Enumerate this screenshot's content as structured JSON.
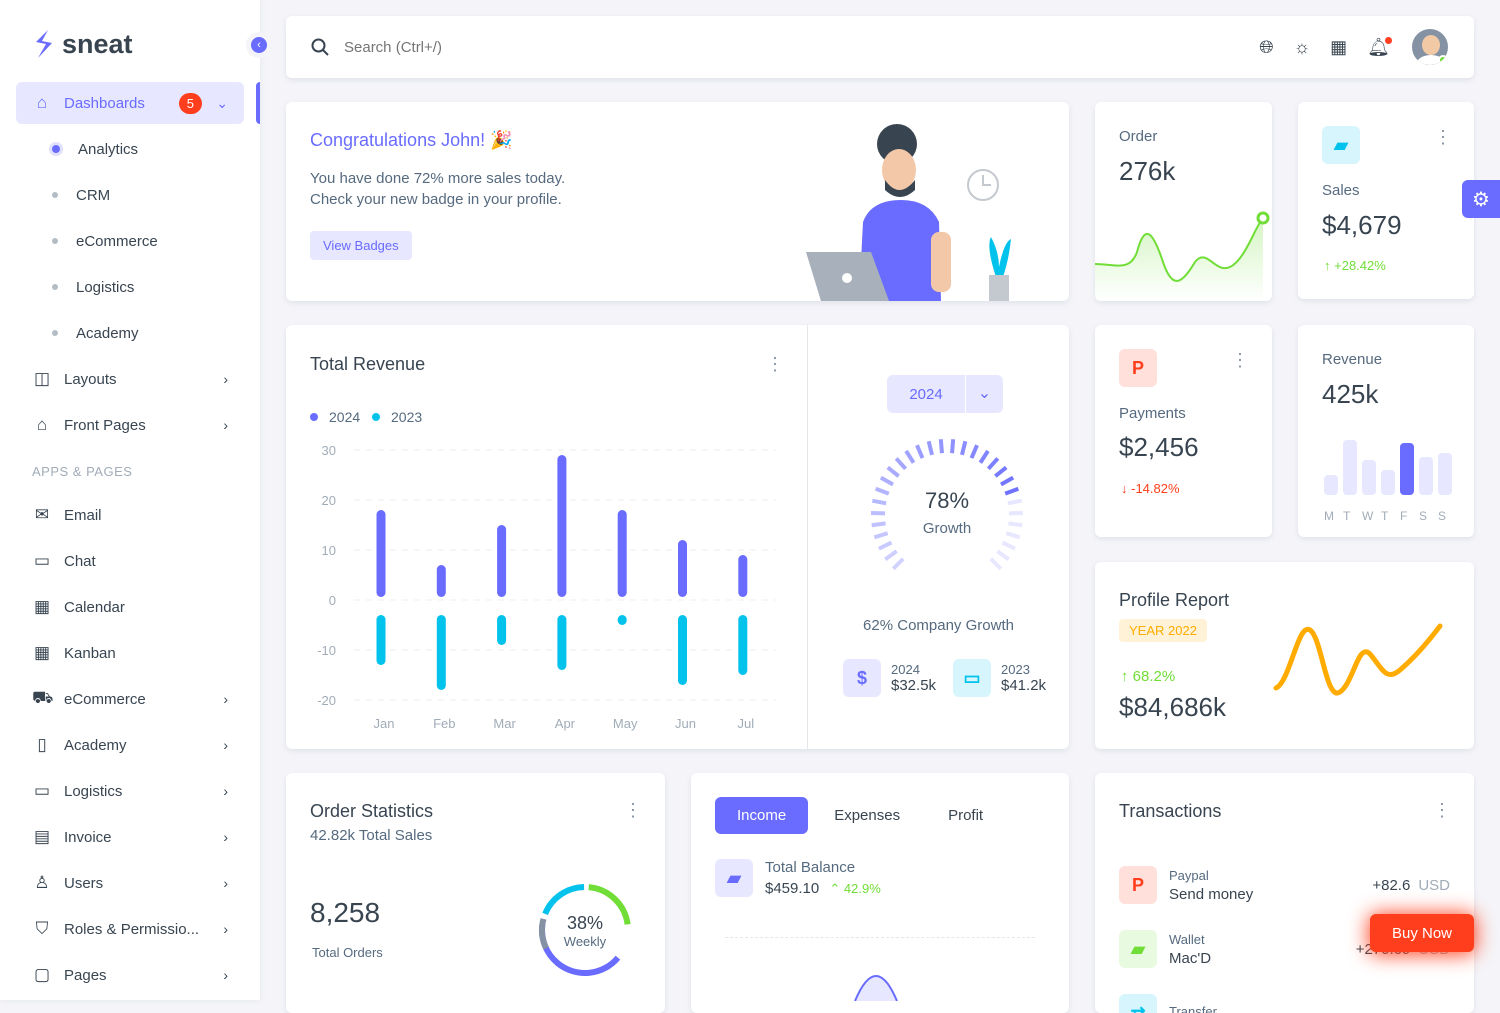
{
  "brand": {
    "name": "sneat",
    "accent": "#696cff"
  },
  "sidebar": {
    "dashboards": {
      "label": "Dashboards",
      "badge": "5"
    },
    "sub": [
      "Analytics",
      "CRM",
      "eCommerce",
      "Logistics",
      "Academy"
    ],
    "top_items": [
      {
        "label": "Layouts",
        "icon": "layout-icon"
      },
      {
        "label": "Front Pages",
        "icon": "store-icon"
      }
    ],
    "section": "APPS & PAGES",
    "items": [
      {
        "label": "Email",
        "icon": "mail-icon",
        "chev": false
      },
      {
        "label": "Chat",
        "icon": "chat-icon",
        "chev": false
      },
      {
        "label": "Calendar",
        "icon": "calendar-icon",
        "chev": false
      },
      {
        "label": "Kanban",
        "icon": "grid-icon",
        "chev": false
      },
      {
        "label": "eCommerce",
        "icon": "cart-icon",
        "chev": true
      },
      {
        "label": "Academy",
        "icon": "book-icon",
        "chev": true
      },
      {
        "label": "Logistics",
        "icon": "bus-icon",
        "chev": true
      },
      {
        "label": "Invoice",
        "icon": "invoice-icon",
        "chev": true
      },
      {
        "label": "Users",
        "icon": "user-icon",
        "chev": true
      },
      {
        "label": "Roles & Permissio...",
        "icon": "shield-icon",
        "chev": true
      },
      {
        "label": "Pages",
        "icon": "page-icon",
        "chev": true
      }
    ]
  },
  "topbar": {
    "search_placeholder": "Search (Ctrl+/)"
  },
  "congrats": {
    "title": "Congratulations John! 🎉",
    "line1": "You have done 72% more sales today.",
    "line2": "Check your new badge in your profile.",
    "button": "View Badges"
  },
  "order": {
    "label": "Order",
    "value": "276k"
  },
  "sales": {
    "label": "Sales",
    "value": "$4,679",
    "change": "+28.42%"
  },
  "revenue_card": {
    "title": "Total Revenue",
    "year": "2024",
    "growth_pct": "78%",
    "growth_label": "Growth",
    "growth_value": 78,
    "company_growth": "62% Company Growth",
    "y2024": {
      "label": "2024",
      "value": "$32.5k"
    },
    "y2023": {
      "label": "2023",
      "value": "$41.2k"
    }
  },
  "chart_data": {
    "type": "bar",
    "categories": [
      "Jan",
      "Feb",
      "Mar",
      "Apr",
      "May",
      "Jun",
      "Jul"
    ],
    "ylim": [
      -20,
      30
    ],
    "yticks": [
      30,
      20,
      10,
      0,
      -10,
      -20
    ],
    "grid": true,
    "legend": "top-left",
    "series": [
      {
        "name": "2024",
        "color": "#696cff",
        "values": [
          18,
          7,
          15,
          29,
          18,
          12,
          9
        ]
      },
      {
        "name": "2023",
        "color": "#03c3ec",
        "values": [
          -13,
          -18,
          -9,
          -14,
          -5,
          -17,
          -15
        ]
      }
    ]
  },
  "payments": {
    "label": "Payments",
    "value": "$2,456",
    "change": "-14.82%"
  },
  "revenue_small": {
    "label": "Revenue",
    "value": "425k",
    "days": [
      "M",
      "T",
      "W",
      "T",
      "F",
      "S",
      "S"
    ]
  },
  "profile": {
    "title": "Profile Report",
    "badge": "YEAR 2022",
    "change": "68.2%",
    "value": "$84,686k"
  },
  "order_stats": {
    "title": "Order Statistics",
    "subtitle": "42.82k Total Sales",
    "value": "8,258",
    "value_label": "Total Orders",
    "pct": "38%",
    "pct_label": "Weekly"
  },
  "balance": {
    "tabs": [
      "Income",
      "Expenses",
      "Profit"
    ],
    "label": "Total Balance",
    "value": "$459.10",
    "change": "42.9%"
  },
  "transactions": {
    "title": "Transactions",
    "items": [
      {
        "type": "Paypal",
        "desc": "Send money",
        "amount": "+82.6",
        "cur": "USD"
      },
      {
        "type": "Wallet",
        "desc": "Mac'D",
        "amount": "+270.69",
        "cur": "USD"
      },
      {
        "type": "Transfer",
        "desc": "",
        "amount": "",
        "cur": ""
      }
    ]
  },
  "buy_now": "Buy Now"
}
